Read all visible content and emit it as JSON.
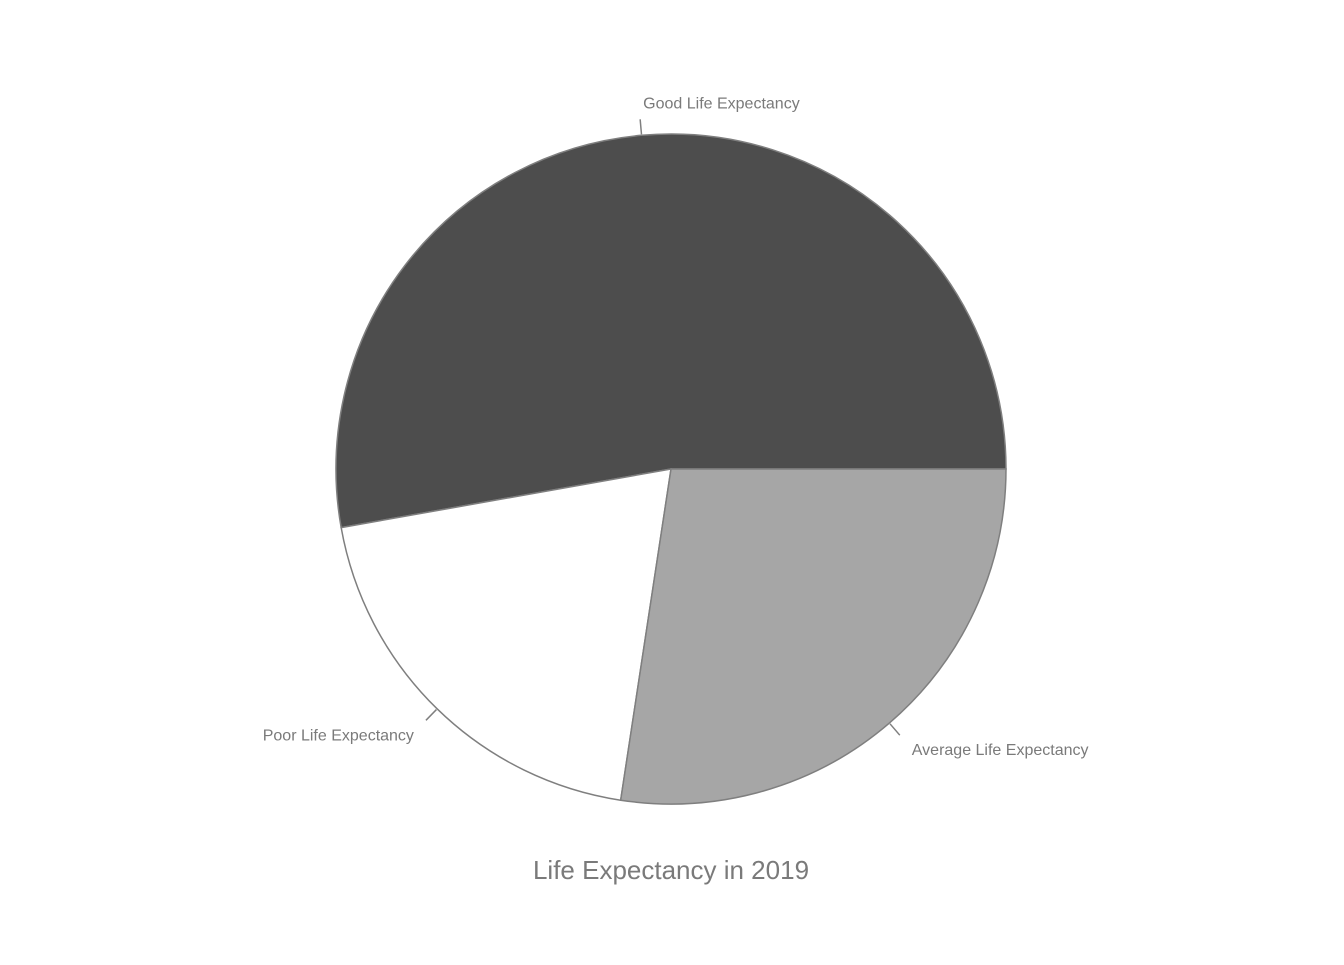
{
  "chart_data": {
    "type": "pie",
    "title": "Life Expectancy in 2019",
    "categories": [
      "Good Life Expectancy",
      "Poor Life Expectancy",
      "Average Life Expectancy"
    ],
    "values": [
      52.8,
      19.8,
      27.4
    ],
    "unit": "",
    "start_angle": "3 o'clock, counter-clockwise",
    "colors": [
      "#4d4d4d",
      "#ffffff",
      "#a6a6a6"
    ],
    "stroke_color": "#7f7f7f",
    "label_color": "#7a7a7a",
    "legend": "none"
  }
}
